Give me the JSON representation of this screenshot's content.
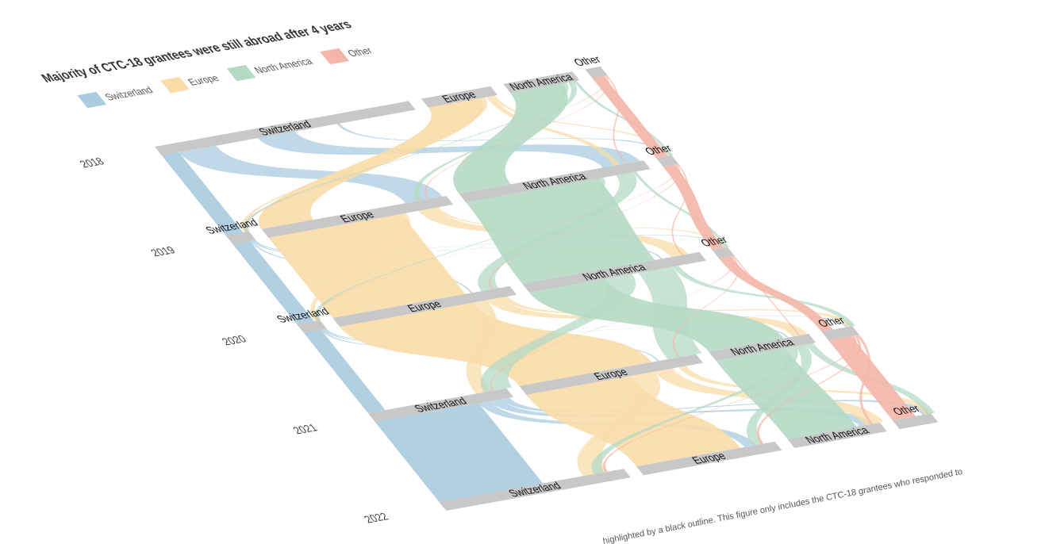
{
  "chart_data": {
    "type": "alluvial",
    "title": "Majority of CTC-18 grantees were still abroad after 4 years",
    "categories": [
      "2018",
      "2019",
      "2020",
      "2021",
      "2022"
    ],
    "series": [
      {
        "name": "Switzerland",
        "color": "#a9cce0",
        "values": [
          33,
          3,
          3,
          18,
          24
        ]
      },
      {
        "name": "Europe",
        "color": "#f9dca8",
        "values": [
          9,
          24,
          23,
          23,
          18
        ]
      },
      {
        "name": "North America",
        "color": "#b4d9c4",
        "values": [
          9,
          24,
          23,
          13,
          12
        ]
      },
      {
        "name": "Other",
        "color": "#f4b6a8",
        "values": [
          2,
          2,
          2,
          4,
          5
        ]
      }
    ],
    "footnote": "highlighted by a black outline. This figure only includes the CTC-18 grantees who responded to"
  }
}
